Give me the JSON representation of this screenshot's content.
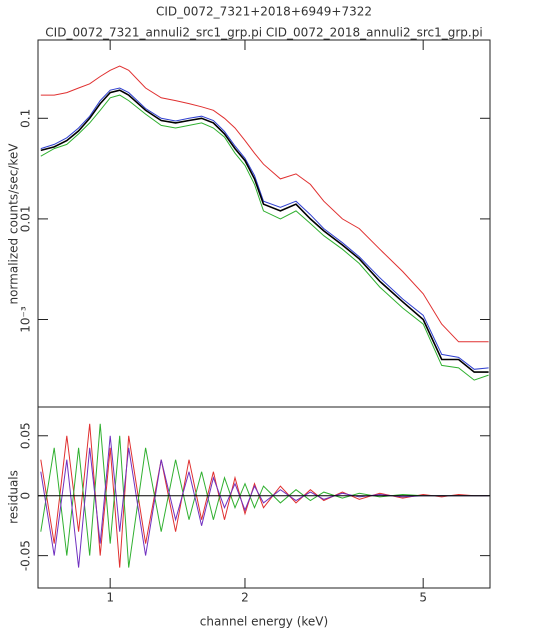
{
  "chart_data": [
    {
      "type": "line",
      "title": "CID_0072_7321+2018+6949+7322",
      "subtitle": "CID_0072_7321_annuli2_src1_grp.pi CID_0072_2018_annuli2_src1_grp.pi",
      "ylabel": "normalized counts/sec/keV",
      "xlog": true,
      "ylog": true,
      "xlim": [
        0.69,
        7.05
      ],
      "ylim": [
        0.000135,
        0.6
      ],
      "yticks": [
        {
          "value": 0.1,
          "label": "0.1"
        },
        {
          "value": 0.01,
          "label": "0.01"
        },
        {
          "value": 0.001,
          "label": "10⁻³"
        }
      ],
      "x": [
        0.7,
        0.75,
        0.8,
        0.85,
        0.9,
        0.95,
        1.0,
        1.05,
        1.1,
        1.2,
        1.3,
        1.4,
        1.5,
        1.6,
        1.7,
        1.8,
        1.9,
        2.0,
        2.1,
        2.2,
        2.4,
        2.6,
        2.8,
        3.0,
        3.3,
        3.6,
        4.0,
        4.5,
        5.0,
        5.5,
        6.0,
        6.5,
        7.0
      ],
      "series": [
        {
          "color": "#e03030",
          "values": [
            0.17,
            0.17,
            0.18,
            0.2,
            0.22,
            0.26,
            0.3,
            0.33,
            0.3,
            0.2,
            0.16,
            0.15,
            0.14,
            0.13,
            0.12,
            0.1,
            0.08,
            0.06,
            0.045,
            0.035,
            0.025,
            0.028,
            0.022,
            0.015,
            0.01,
            0.008,
            0.005,
            0.003,
            0.0018,
            0.0009,
            0.0006,
            0.0006,
            0.0006
          ]
        },
        {
          "color": "#30b030",
          "values": [
            0.042,
            0.05,
            0.055,
            0.07,
            0.09,
            0.12,
            0.16,
            0.17,
            0.15,
            0.11,
            0.085,
            0.08,
            0.085,
            0.09,
            0.08,
            0.065,
            0.045,
            0.034,
            0.022,
            0.012,
            0.01,
            0.012,
            0.009,
            0.0068,
            0.005,
            0.0036,
            0.0021,
            0.0013,
            0.0009,
            0.00035,
            0.00033,
            0.00025,
            0.00028
          ]
        },
        {
          "color": "#3040d0",
          "values": [
            0.05,
            0.055,
            0.064,
            0.08,
            0.105,
            0.15,
            0.19,
            0.2,
            0.18,
            0.125,
            0.1,
            0.094,
            0.1,
            0.105,
            0.095,
            0.074,
            0.053,
            0.04,
            0.027,
            0.015,
            0.013,
            0.015,
            0.011,
            0.008,
            0.0058,
            0.0042,
            0.0026,
            0.0016,
            0.0011,
            0.00045,
            0.00042,
            0.00032,
            0.00033
          ]
        },
        {
          "color": "#000000",
          "values": [
            0.048,
            0.052,
            0.06,
            0.075,
            0.1,
            0.14,
            0.18,
            0.19,
            0.17,
            0.12,
            0.095,
            0.09,
            0.095,
            0.1,
            0.09,
            0.07,
            0.05,
            0.038,
            0.025,
            0.014,
            0.012,
            0.014,
            0.01,
            0.0076,
            0.0055,
            0.004,
            0.0024,
            0.0015,
            0.001,
            0.0004,
            0.0004,
            0.0003,
            0.0003
          ]
        }
      ]
    },
    {
      "type": "line",
      "ylabel": "residuals",
      "xlabel": "channel energy (keV)",
      "xlog": true,
      "xlim": [
        0.69,
        7.05
      ],
      "ylim": [
        -0.077,
        0.074
      ],
      "xticks": [
        1,
        2,
        5
      ],
      "yticks": [
        -0.05,
        0,
        0.05
      ],
      "zero_line": true,
      "x": [
        0.7,
        0.75,
        0.8,
        0.85,
        0.9,
        0.95,
        1.0,
        1.05,
        1.1,
        1.2,
        1.3,
        1.4,
        1.5,
        1.6,
        1.7,
        1.8,
        1.9,
        2.0,
        2.1,
        2.2,
        2.4,
        2.6,
        2.8,
        3.0,
        3.3,
        3.6,
        4.0,
        4.5,
        5.0,
        5.5,
        6.0,
        6.5,
        7.0
      ],
      "series": [
        {
          "color": "#e03030",
          "values": [
            0.03,
            -0.04,
            0.05,
            -0.03,
            0.06,
            -0.05,
            0.04,
            -0.06,
            0.05,
            -0.04,
            0.03,
            -0.03,
            0.03,
            -0.02,
            0.02,
            -0.02,
            0.015,
            -0.015,
            0.01,
            -0.01,
            0.008,
            -0.006,
            0.005,
            -0.004,
            0.003,
            -0.003,
            0.002,
            -0.002,
            0.001,
            -0.001,
            0.001,
            0,
            0
          ]
        },
        {
          "color": "#30b030",
          "values": [
            -0.03,
            0.04,
            -0.05,
            0.04,
            -0.05,
            0.06,
            -0.04,
            0.05,
            -0.06,
            0.04,
            -0.03,
            0.03,
            -0.02,
            0.02,
            -0.02,
            0.015,
            -0.01,
            0.01,
            -0.01,
            0.008,
            -0.006,
            0.005,
            -0.004,
            0.003,
            -0.002,
            0.002,
            -0.001,
            0.001,
            0,
            0,
            0,
            0,
            0
          ]
        },
        {
          "color": "#7030c0",
          "values": [
            0.02,
            -0.05,
            0.03,
            -0.06,
            0.04,
            -0.04,
            0.05,
            -0.03,
            0.04,
            -0.05,
            0.03,
            -0.02,
            0.02,
            -0.025,
            0.015,
            -0.01,
            0.01,
            -0.012,
            0.008,
            -0.006,
            0.005,
            -0.004,
            0.003,
            -0.003,
            0.002,
            -0.001,
            0.001,
            -0.001,
            0,
            0,
            0,
            0,
            0
          ]
        }
      ]
    }
  ]
}
